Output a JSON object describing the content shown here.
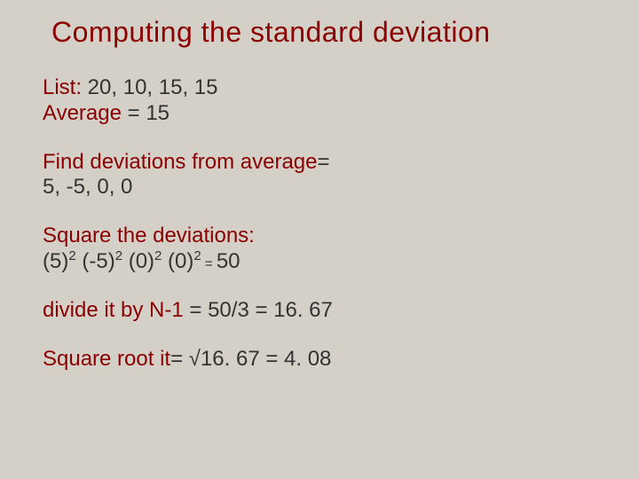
{
  "colors": {
    "background": "#d4d0c8",
    "text": "#333333",
    "accent": "#8b0000"
  },
  "typography": {
    "font_family": "Verdana, Geneva, sans-serif",
    "title_fontsize": 32,
    "body_fontsize": 24,
    "sup_fontsize": 15
  },
  "title": "Computing the standard deviation",
  "list": {
    "label": "List:",
    "values": " 20, 10, 15, 15"
  },
  "average": {
    "label": "Average",
    "value": " = 15"
  },
  "deviations": {
    "label": "Find deviations from average",
    "equals": "=",
    "values": "5, -5, 0, 0"
  },
  "square": {
    "label": "Square the deviations:",
    "t1a": "(5)",
    "t1b": "2",
    "t2a": " (-5)",
    "t2b": "2",
    "t3a": " (0)",
    "t3b": "2",
    "t4a": " (0)",
    "t4b": "2",
    "eq": " = ",
    "result": "50"
  },
  "divide": {
    "label": "divide it by N-1",
    "expr": " = 50/3 = 16. 67"
  },
  "root": {
    "label": "Square root it",
    "expr": "= √16. 67 = 4. 08"
  }
}
